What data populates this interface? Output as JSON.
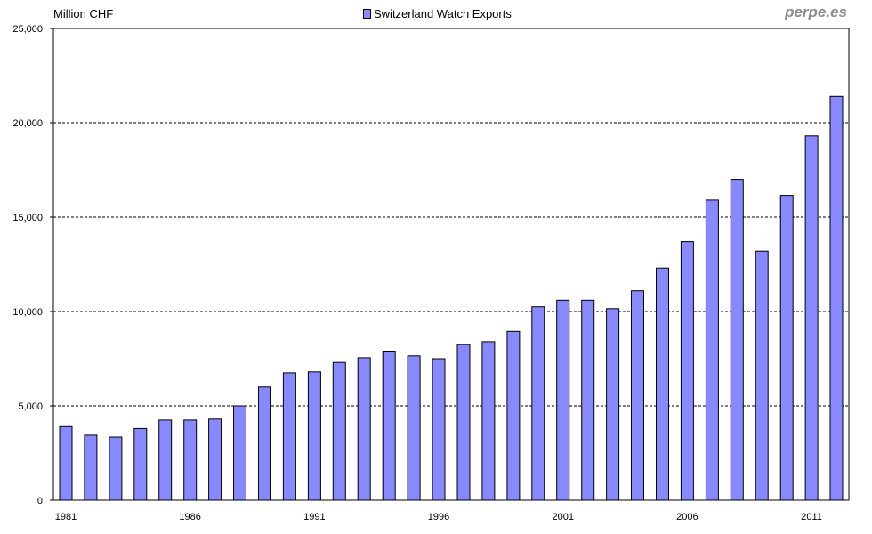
{
  "unit_label": "Million CHF",
  "watermark": "perpe.es",
  "colors": {
    "bar": "#8888ff",
    "bar_stroke": "#000000",
    "grid": "#000000"
  },
  "chart_data": {
    "type": "bar",
    "title": "",
    "xlabel": "",
    "ylabel": "Million CHF",
    "ylim": [
      0,
      25000
    ],
    "yticks": [
      0,
      5000,
      10000,
      15000,
      20000,
      25000
    ],
    "ytick_labels": [
      "0",
      "5,000",
      "10,000",
      "15,000",
      "20,000",
      "25,000"
    ],
    "xtick_labels": [
      "1981",
      "1986",
      "1991",
      "1996",
      "2001",
      "2006",
      "2011"
    ],
    "grid": "horizontal-dashed",
    "legend_position": "top-center",
    "series": [
      {
        "name": "Switzerland Watch Exports",
        "values": [
          3900,
          3450,
          3350,
          3800,
          4250,
          4250,
          4300,
          5000,
          6000,
          6750,
          6800,
          7300,
          7550,
          7900,
          7650,
          7500,
          8250,
          8400,
          8950,
          10250,
          10600,
          10600,
          10150,
          11100,
          12300,
          13700,
          15900,
          17000,
          13200,
          16150,
          19300,
          21400
        ]
      }
    ],
    "categories": [
      "1981",
      "1982",
      "1983",
      "1984",
      "1985",
      "1986",
      "1987",
      "1988",
      "1989",
      "1990",
      "1991",
      "1992",
      "1993",
      "1994",
      "1995",
      "1996",
      "1997",
      "1998",
      "1999",
      "2000",
      "2001",
      "2002",
      "2003",
      "2004",
      "2005",
      "2006",
      "2007",
      "2008",
      "2009",
      "2010",
      "2011",
      "2012"
    ]
  }
}
